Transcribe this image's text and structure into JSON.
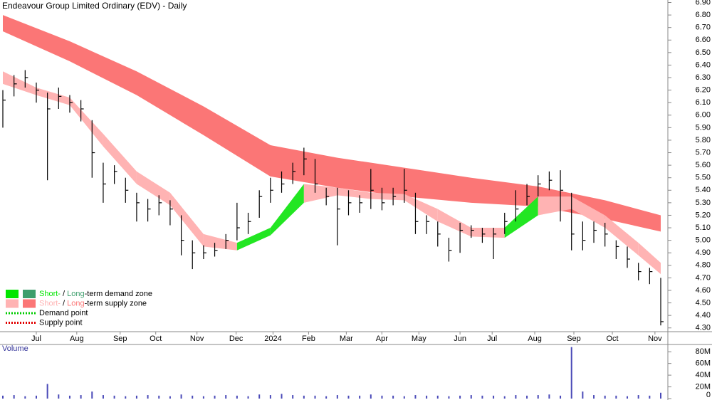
{
  "chart_data": [
    {
      "type": "hlc",
      "title": "Endeavour Group Limited Ordinary (EDV) - Daily",
      "xlim": [
        0,
        59
      ],
      "xticks": [
        {
          "value": 3.0,
          "label": "Jul"
        },
        {
          "value": 6.63,
          "label": "Aug"
        },
        {
          "value": 10.52,
          "label": "Sep"
        },
        {
          "value": 13.71,
          "label": "Oct"
        },
        {
          "value": 17.41,
          "label": "Nov"
        },
        {
          "value": 20.92,
          "label": "Dec"
        },
        {
          "value": 24.23,
          "label": "2024"
        },
        {
          "value": 27.42,
          "label": "Feb"
        },
        {
          "value": 30.8,
          "label": "Mar"
        },
        {
          "value": 33.99,
          "label": "Apr"
        },
        {
          "value": 37.31,
          "label": "May"
        },
        {
          "value": 41.0,
          "label": "Jun"
        },
        {
          "value": 43.88,
          "label": "Jul"
        },
        {
          "value": 47.7,
          "label": "Aug"
        },
        {
          "value": 51.21,
          "label": "Sep"
        },
        {
          "value": 54.66,
          "label": "Oct"
        },
        {
          "value": 58.48,
          "label": "Nov"
        }
      ],
      "ylim": [
        4.27,
        6.92
      ],
      "yticks": [
        {
          "value": 4.3,
          "label": "4.30"
        },
        {
          "value": 4.4,
          "label": "4.40"
        },
        {
          "value": 4.5,
          "label": "4.50"
        },
        {
          "value": 4.6,
          "label": "4.60"
        },
        {
          "value": 4.7,
          "label": "4.70"
        },
        {
          "value": 4.8,
          "label": "4.80"
        },
        {
          "value": 4.9,
          "label": "4.90"
        },
        {
          "value": 5.0,
          "label": "5.00"
        },
        {
          "value": 5.1,
          "label": "5.10"
        },
        {
          "value": 5.2,
          "label": "5.20"
        },
        {
          "value": 5.3,
          "label": "5.30"
        },
        {
          "value": 5.4,
          "label": "5.40"
        },
        {
          "value": 5.5,
          "label": "5.50"
        },
        {
          "value": 5.6,
          "label": "5.60"
        },
        {
          "value": 5.7,
          "label": "5.70"
        },
        {
          "value": 5.8,
          "label": "5.80"
        },
        {
          "value": 5.9,
          "label": "5.90"
        },
        {
          "value": 6.0,
          "label": "6.00"
        },
        {
          "value": 6.1,
          "label": "6.10"
        },
        {
          "value": 6.2,
          "label": "6.20"
        },
        {
          "value": 6.3,
          "label": "6.30"
        },
        {
          "value": 6.4,
          "label": "6.40"
        },
        {
          "value": 6.5,
          "label": "6.50"
        },
        {
          "value": 6.6,
          "label": "6.60"
        },
        {
          "value": 6.7,
          "label": "6.70"
        },
        {
          "value": 6.8,
          "label": "6.80"
        },
        {
          "value": 6.9,
          "label": "6.90"
        }
      ],
      "color": "#000000",
      "high": [
        6.2,
        6.32,
        6.36,
        6.26,
        6.18,
        6.22,
        6.16,
        6.12,
        5.96,
        5.62,
        5.6,
        5.5,
        5.38,
        5.33,
        5.36,
        5.32,
        5.2,
        5.0,
        4.96,
        4.98,
        5.05,
        5.3,
        5.22,
        5.4,
        5.5,
        5.55,
        5.62,
        5.74,
        5.65,
        5.42,
        5.42,
        5.4,
        5.36,
        5.57,
        5.42,
        5.42,
        5.57,
        5.38,
        5.2,
        5.15,
        5.02,
        5.14,
        5.12,
        5.1,
        5.1,
        5.22,
        5.4,
        5.45,
        5.52,
        5.55,
        5.56,
        5.38,
        5.15,
        5.15,
        5.14,
        5.0,
        4.95,
        4.82,
        4.78,
        4.7
      ],
      "low": [
        5.9,
        6.15,
        6.22,
        6.1,
        5.48,
        6.05,
        6.02,
        5.95,
        5.5,
        5.3,
        5.45,
        5.3,
        5.15,
        5.15,
        5.2,
        5.12,
        4.88,
        4.77,
        4.85,
        4.87,
        4.93,
        5.0,
        5.05,
        5.18,
        5.3,
        5.38,
        5.45,
        5.52,
        5.38,
        5.28,
        4.96,
        5.2,
        5.22,
        5.25,
        5.24,
        5.28,
        5.3,
        5.05,
        5.05,
        4.95,
        4.83,
        4.9,
        5.02,
        4.98,
        4.85,
        5.05,
        5.15,
        5.28,
        5.35,
        5.4,
        5.15,
        4.92,
        4.92,
        4.98,
        4.95,
        4.85,
        4.78,
        4.68,
        4.65,
        4.32
      ],
      "close": [
        6.12,
        6.25,
        6.3,
        6.2,
        6.05,
        6.15,
        6.1,
        6.05,
        5.7,
        5.45,
        5.55,
        5.4,
        5.3,
        5.25,
        5.3,
        5.25,
        5.0,
        4.9,
        4.9,
        4.92,
        5.0,
        5.1,
        5.15,
        5.35,
        5.4,
        5.45,
        5.55,
        5.65,
        5.45,
        5.35,
        5.25,
        5.3,
        5.3,
        5.4,
        5.3,
        5.35,
        5.4,
        5.15,
        5.15,
        5.05,
        4.92,
        5.08,
        5.08,
        5.05,
        5.05,
        5.15,
        5.25,
        5.35,
        5.45,
        5.48,
        5.4,
        5.05,
        5.0,
        5.08,
        5.05,
        4.95,
        4.85,
        4.75,
        4.75,
        4.35
      ],
      "bands": [
        {
          "color": "#fb7676",
          "x": [
            0,
            6,
            12,
            18,
            24,
            30,
            36,
            42,
            48,
            54,
            59
          ],
          "upper": [
            6.8,
            6.59,
            6.35,
            6.07,
            5.76,
            5.66,
            5.58,
            5.5,
            5.43,
            5.32,
            5.2
          ],
          "lower": [
            6.67,
            6.43,
            6.16,
            5.84,
            5.51,
            5.42,
            5.35,
            5.3,
            5.27,
            5.17,
            5.07
          ]
        },
        {
          "color": "#ffb3b3",
          "rising_color": "#22e622",
          "x": [
            0,
            3,
            6,
            9,
            12,
            15,
            18,
            21,
            24,
            27,
            30,
            33,
            36,
            39,
            42,
            45,
            48,
            51,
            54,
            57,
            59
          ],
          "upper": [
            6.35,
            6.22,
            6.14,
            5.85,
            5.55,
            5.38,
            5.05,
            4.98,
            5.1,
            5.45,
            5.42,
            5.38,
            5.37,
            5.25,
            5.1,
            5.1,
            5.35,
            5.35,
            5.2,
            4.98,
            4.82
          ],
          "lower": [
            6.25,
            6.16,
            6.08,
            5.75,
            5.45,
            5.28,
            4.95,
            4.92,
            5.04,
            5.3,
            5.36,
            5.33,
            5.32,
            5.15,
            5.03,
            5.02,
            5.2,
            5.25,
            5.1,
            4.88,
            4.73
          ]
        }
      ],
      "legend": [
        {
          "swatches": [
            "#00e600",
            "#3c9e6c"
          ],
          "parts": [
            {
              "text": "Short-",
              "color": "#00e600"
            },
            {
              "text": " / "
            },
            {
              "text": "Long",
              "color": "#3c9e6c"
            },
            {
              "text": "-term demand zone"
            }
          ]
        },
        {
          "swatches": [
            "#ffb3b3",
            "#fb7676"
          ],
          "parts": [
            {
              "text": "Short-",
              "color": "#ffb3b3"
            },
            {
              "text": " / "
            },
            {
              "text": "Long",
              "color": "#fb7676"
            },
            {
              "text": "-term supply zone"
            }
          ]
        },
        {
          "line_color": "#00cc00",
          "parts": [
            {
              "text": "Demand point"
            }
          ]
        },
        {
          "line_color": "#e00000",
          "parts": [
            {
              "text": "Supply point"
            }
          ]
        }
      ]
    },
    {
      "type": "bar",
      "title": "Volume",
      "color": "#4a4ab8",
      "ylim": [
        0,
        90000000
      ],
      "yticks": [
        {
          "value": 0,
          "label": "0"
        },
        {
          "value": 20000000,
          "label": "20M"
        },
        {
          "value": 40000000,
          "label": "40M"
        },
        {
          "value": 60000000,
          "label": "60M"
        },
        {
          "value": 80000000,
          "label": "80M"
        }
      ],
      "values": [
        5000000,
        6000000,
        4000000,
        5000000,
        25000000,
        7000000,
        5000000,
        6000000,
        12000000,
        6000000,
        5000000,
        4000000,
        5000000,
        6000000,
        5000000,
        4000000,
        7000000,
        5000000,
        4000000,
        5000000,
        6000000,
        5000000,
        4000000,
        7000000,
        6000000,
        8000000,
        6000000,
        5000000,
        5000000,
        4000000,
        6000000,
        5000000,
        5000000,
        7000000,
        5000000,
        5000000,
        4000000,
        6000000,
        5000000,
        5000000,
        4000000,
        5000000,
        6000000,
        5000000,
        5000000,
        4000000,
        6000000,
        5000000,
        6000000,
        7000000,
        5000000,
        88000000,
        12000000,
        6000000,
        5000000,
        5000000,
        4000000,
        6000000,
        5000000,
        10000000
      ]
    }
  ]
}
